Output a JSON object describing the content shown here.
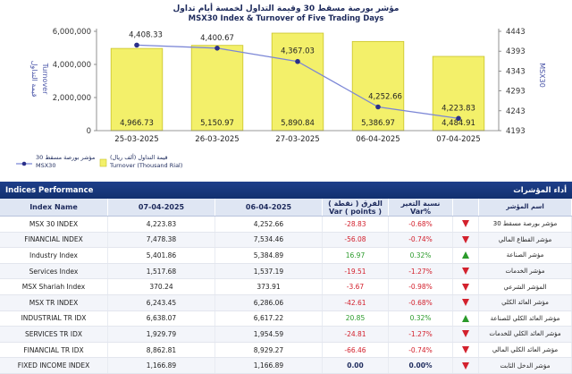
{
  "chart_data": {
    "type": "bar",
    "title_ar": "مؤشر بورصة مسقط 30 وقيمة التداول لخمسة أيام تداول",
    "title": "MSX30 Index & Turnover of Five Trading Days",
    "categories": [
      "25-03-2025",
      "26-03-2025",
      "27-03-2025",
      "06-04-2025",
      "07-04-2025"
    ],
    "series": [
      {
        "name": "Turnover (Thousand Rial)",
        "name_ar": "قيمة التداول (ألف ريال)",
        "type": "bar",
        "axis": "left",
        "values": [
          4966.73,
          5150.97,
          5890.84,
          5386.97,
          4484.91
        ],
        "labels": [
          "4,966.73",
          "5,150.97",
          "5,890.84",
          "5,386.97",
          "4,484.91"
        ]
      },
      {
        "name": "MSX30",
        "name_ar": "مؤشر بورصة مسقط 30",
        "type": "line",
        "axis": "right",
        "values": [
          4408.33,
          4400.67,
          4367.03,
          4252.66,
          4223.83
        ],
        "labels": [
          "4,408.33",
          "4,400.67",
          "4,367.03",
          "4,252.66",
          "4,223.83"
        ]
      }
    ],
    "y_left": {
      "label": "Turnover",
      "label_ar": "قيمة التداول",
      "ylim": [
        0,
        6000000
      ],
      "ticks": [
        "0",
        "2,000,000",
        "4,000,000",
        "6,000,000"
      ]
    },
    "y_right": {
      "label": "MSX30",
      "ylim": [
        4193,
        4443
      ],
      "ticks": [
        "4193",
        "4243",
        "4293",
        "4343",
        "4393",
        "4443"
      ]
    },
    "colors": {
      "bar": "#f3f06a",
      "bar_edge": "#c9c32a",
      "line": "#7b86d6",
      "marker": "#2a2f8a",
      "header": "#1e3f8a"
    },
    "legend": "bottom-left"
  },
  "table": {
    "title": "Indices Performance",
    "title_ar": "أداء المؤشرات",
    "headers": [
      "Index Name",
      "07-04-2025",
      "06-04-2025",
      "الفرق ( نقطة ) Var ( points )",
      "نسبة التغير Var%",
      "",
      "اسم المؤشر"
    ],
    "header_var_points_ar": "الفرق ( نقطة )",
    "header_var_points_en": "Var ( points )",
    "header_var_pct_ar": "نسبة التغير",
    "header_var_pct_en": "Var%",
    "rows": [
      {
        "name": "MSX 30 INDEX",
        "d1": "4,223.83",
        "d2": "4,252.66",
        "var": "-28.83",
        "pct": "-0.68%",
        "dir": "down",
        "name_ar": "مؤشر بورصة مسقط 30"
      },
      {
        "name": "FINANCIAL INDEX",
        "d1": "7,478.38",
        "d2": "7,534.46",
        "var": "-56.08",
        "pct": "-0.74%",
        "dir": "down",
        "name_ar": "مؤشر القطاع المالي"
      },
      {
        "name": "Industry Index",
        "d1": "5,401.86",
        "d2": "5,384.89",
        "var": "16.97",
        "pct": "0.32%",
        "dir": "up",
        "name_ar": "مؤشر الصناعة"
      },
      {
        "name": "Services Index",
        "d1": "1,517.68",
        "d2": "1,537.19",
        "var": "-19.51",
        "pct": "-1.27%",
        "dir": "down",
        "name_ar": "مؤشر الخدمات"
      },
      {
        "name": "MSX Shariah Index",
        "d1": "370.24",
        "d2": "373.91",
        "var": "-3.67",
        "pct": "-0.98%",
        "dir": "down",
        "name_ar": "المؤشر الشرعي"
      },
      {
        "name": "MSX TR INDEX",
        "d1": "6,243.45",
        "d2": "6,286.06",
        "var": "-42.61",
        "pct": "-0.68%",
        "dir": "down",
        "name_ar": "مؤشر العائد الكلي"
      },
      {
        "name": "INDUSTRIAL TR IDX",
        "d1": "6,638.07",
        "d2": "6,617.22",
        "var": "20.85",
        "pct": "0.32%",
        "dir": "up",
        "name_ar": "مؤشر العائد الكلي للصناعة"
      },
      {
        "name": "SERVICES TR IDX",
        "d1": "1,929.79",
        "d2": "1,954.59",
        "var": "-24.81",
        "pct": "-1.27%",
        "dir": "down",
        "name_ar": "مؤشر العائد الكلي للخدمات"
      },
      {
        "name": "FINANCIAL TR IDX",
        "d1": "8,862.81",
        "d2": "8,929.27",
        "var": "-66.46",
        "pct": "-0.74%",
        "dir": "down",
        "name_ar": "مؤشر العائد الكلي المالي"
      },
      {
        "name": "FIXED INCOME INDEX",
        "d1": "1,166.89",
        "d2": "1,166.89",
        "var": "0.00",
        "pct": "0.00%",
        "dir": "down",
        "name_ar": "مؤشر الدخل الثابت"
      }
    ]
  }
}
